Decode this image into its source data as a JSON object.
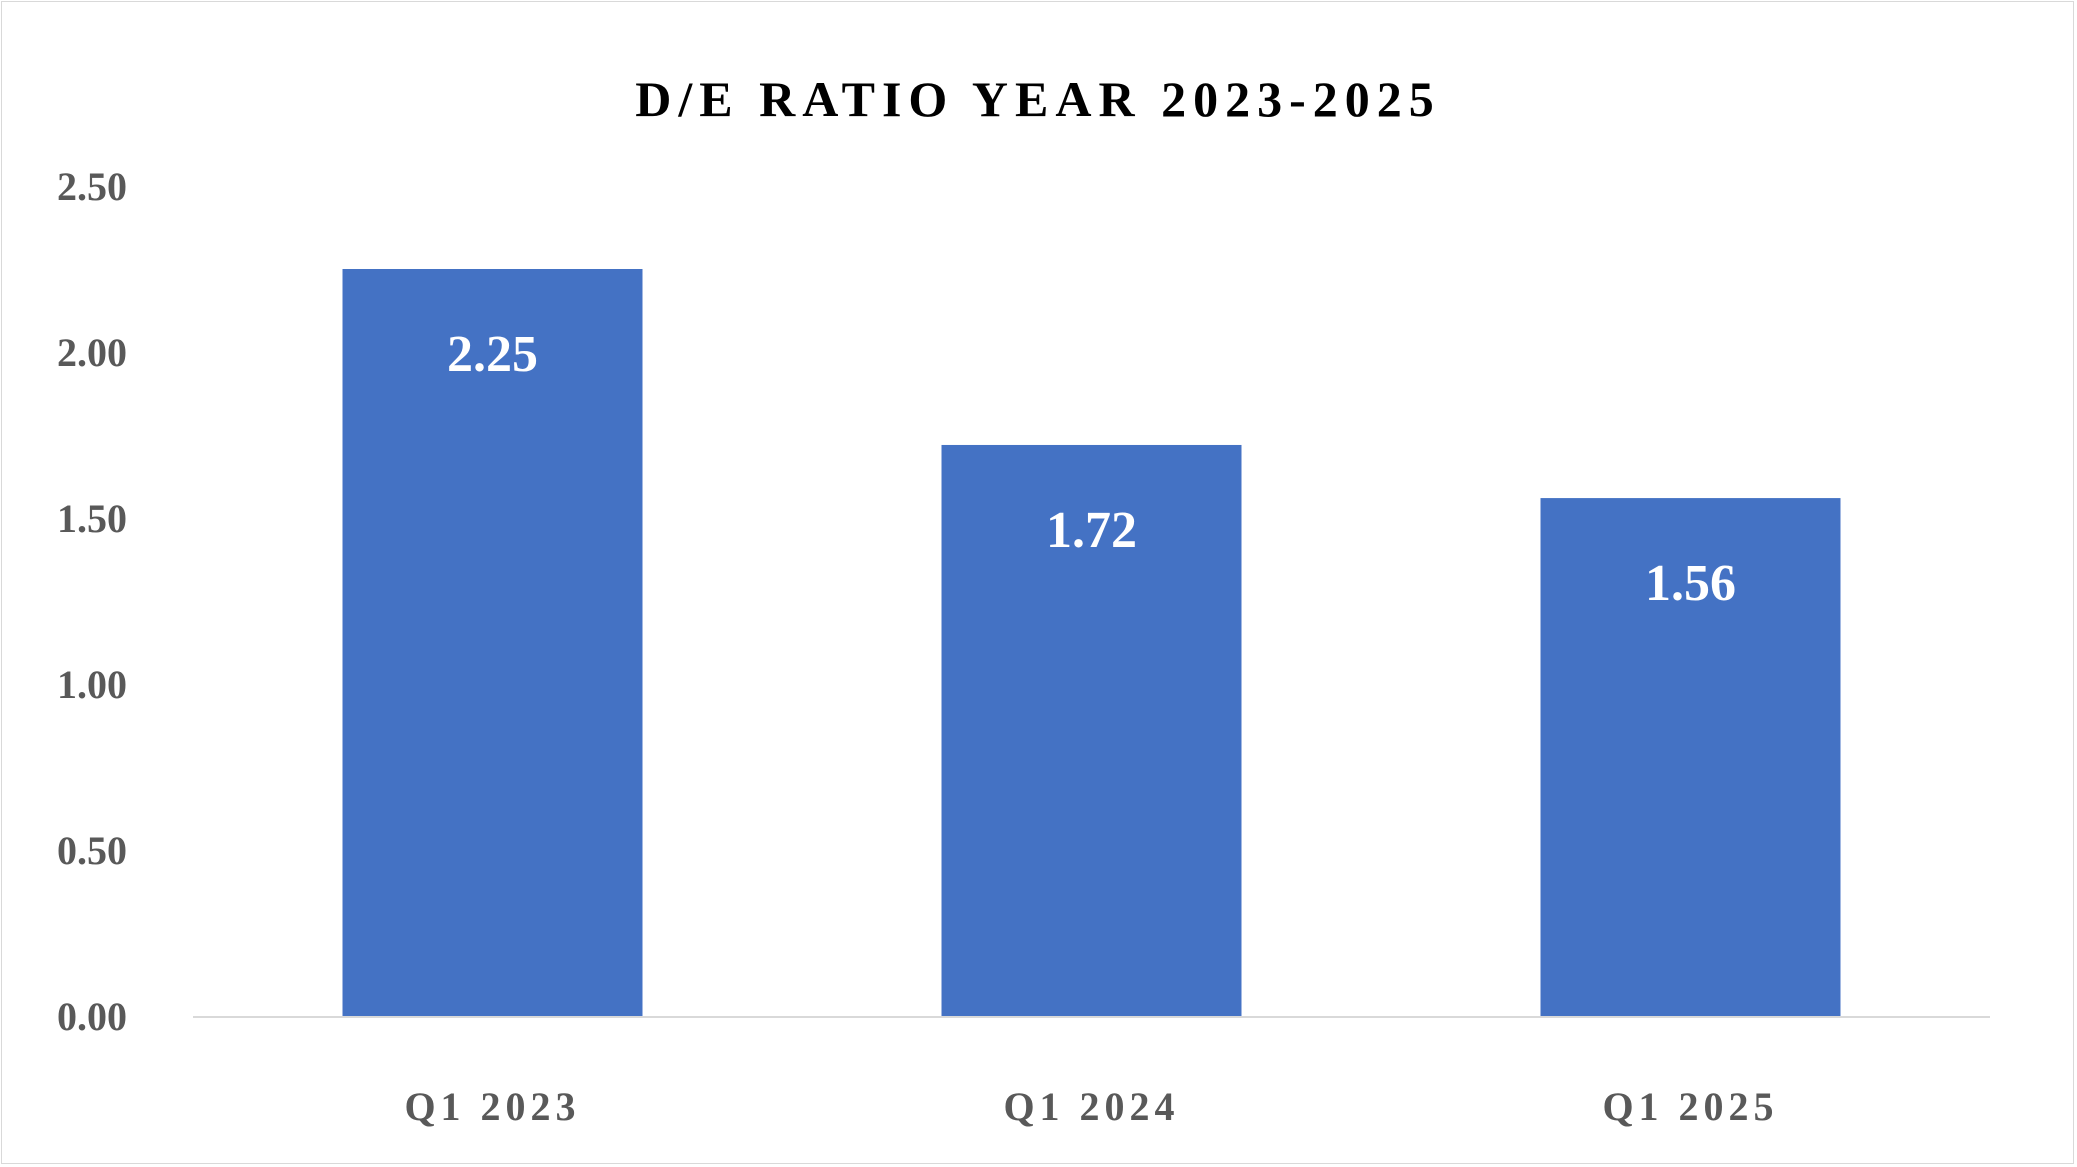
{
  "chart_data": {
    "type": "bar",
    "title": "D/E RATIO YEAR 2023-2025",
    "categories": [
      "Q1 2023",
      "Q1 2024",
      "Q1 2025"
    ],
    "values": [
      2.25,
      1.72,
      1.56
    ],
    "data_labels": [
      "2.25",
      "1.72",
      "1.56"
    ],
    "y_ticks": [
      "0.00",
      "0.50",
      "1.00",
      "1.50",
      "2.00",
      "2.50"
    ],
    "ylim": [
      0,
      2.5
    ],
    "grid": false,
    "legend": "none",
    "bar_color": "#4472C4",
    "axis_color": "#d9d9d9"
  }
}
